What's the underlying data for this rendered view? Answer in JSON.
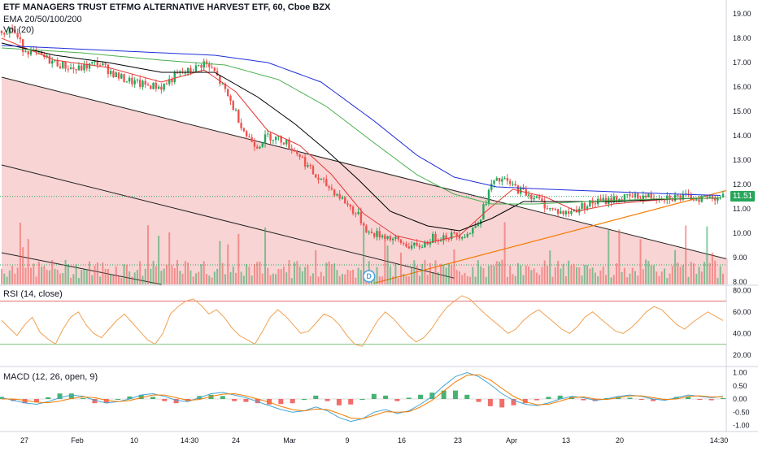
{
  "header": {
    "symbol_title": "ETF MANAGERS TRUST ETFMG ALTERNATIVE HARVEST ETF, 60, Cboe BZX",
    "ema_label": "EMA 20/50/100/200",
    "vol_label": "Vol (20)",
    "rsi_label": "RSI (14, close)",
    "macd_label": "MACD (12, 26, open, 9)"
  },
  "colors": {
    "up": "#26a65b",
    "down": "#ef5350",
    "ema20": "#e53935",
    "ema50": "#000000",
    "ema100": "#4caf50",
    "ema200": "#1e2fd8",
    "channel_fill": "#f6c6c6",
    "rsi_line": "#f0a050",
    "rsi_band_upper": "#e57373",
    "rsi_band_lower": "#81c784",
    "macd_line": "#42a5d5",
    "signal_line": "#f57c00",
    "trendline_orange": "#f57c00"
  },
  "last_price_label": "11.51",
  "event_marker_label": "D",
  "chart_data": [
    {
      "type": "candlestick",
      "title": "ETF MANAGERS TRUST ETFMG ALTERNATIVE HARVEST ETF, 60, Cboe BZX",
      "ylim": [
        7.9,
        19.3
      ],
      "y_ticks": [
        "19.00",
        "18.00",
        "17.00",
        "16.00",
        "15.00",
        "14.00",
        "13.00",
        "12.00",
        "11.00",
        "10.00",
        "9.00",
        "8.00"
      ],
      "x_tick_labels": [
        "27",
        "Feb",
        "10",
        "14:30",
        "24",
        "Mar",
        "9",
        "16",
        "23",
        "Apr",
        "13",
        "20",
        "14:30"
      ],
      "price_anchor_points": [
        [
          0,
          18.3
        ],
        [
          4,
          18.4
        ],
        [
          8,
          17.6
        ],
        [
          14,
          17.3
        ],
        [
          20,
          17.0
        ],
        [
          28,
          16.7
        ],
        [
          36,
          17.0
        ],
        [
          44,
          16.4
        ],
        [
          52,
          16.1
        ],
        [
          60,
          16.0
        ],
        [
          66,
          16.5
        ],
        [
          72,
          16.7
        ],
        [
          76,
          17.0
        ],
        [
          80,
          16.6
        ],
        [
          86,
          15.4
        ],
        [
          92,
          14.0
        ],
        [
          96,
          13.6
        ],
        [
          100,
          14.0
        ],
        [
          106,
          13.8
        ],
        [
          112,
          13.2
        ],
        [
          118,
          12.3
        ],
        [
          124,
          11.8
        ],
        [
          128,
          11.4
        ],
        [
          134,
          10.7
        ],
        [
          138,
          10.0
        ],
        [
          144,
          9.9
        ],
        [
          150,
          9.6
        ],
        [
          156,
          9.4
        ],
        [
          162,
          9.8
        ],
        [
          168,
          9.9
        ],
        [
          176,
          10.0
        ],
        [
          180,
          10.7
        ],
        [
          184,
          12.0
        ],
        [
          188,
          12.2
        ],
        [
          194,
          11.8
        ],
        [
          200,
          11.5
        ],
        [
          206,
          11.0
        ],
        [
          212,
          10.8
        ],
        [
          220,
          11.2
        ],
        [
          230,
          11.4
        ],
        [
          240,
          11.5
        ],
        [
          250,
          11.5
        ],
        [
          260,
          11.45
        ],
        [
          270,
          11.5
        ]
      ],
      "series": [
        {
          "name": "EMA 20",
          "points": [
            [
              0,
              18.0
            ],
            [
              20,
              17.1
            ],
            [
              40,
              16.8
            ],
            [
              60,
              16.2
            ],
            [
              76,
              16.7
            ],
            [
              88,
              15.8
            ],
            [
              100,
              14.2
            ],
            [
              112,
              13.6
            ],
            [
              124,
              12.4
            ],
            [
              136,
              10.8
            ],
            [
              148,
              9.9
            ],
            [
              160,
              9.6
            ],
            [
              172,
              9.9
            ],
            [
              182,
              10.9
            ],
            [
              192,
              11.8
            ],
            [
              204,
              11.5
            ],
            [
              216,
              10.9
            ],
            [
              230,
              11.2
            ],
            [
              250,
              11.4
            ],
            [
              270,
              11.45
            ]
          ]
        },
        {
          "name": "EMA 50",
          "points": [
            [
              0,
              17.8
            ],
            [
              20,
              17.3
            ],
            [
              40,
              17.0
            ],
            [
              60,
              16.6
            ],
            [
              80,
              16.6
            ],
            [
              96,
              15.6
            ],
            [
              110,
              14.5
            ],
            [
              122,
              13.4
            ],
            [
              134,
              12.2
            ],
            [
              146,
              10.9
            ],
            [
              160,
              10.3
            ],
            [
              172,
              10.1
            ],
            [
              184,
              10.6
            ],
            [
              196,
              11.3
            ],
            [
              212,
              11.3
            ],
            [
              230,
              11.3
            ],
            [
              250,
              11.4
            ],
            [
              270,
              11.45
            ]
          ]
        },
        {
          "name": "EMA 100",
          "points": [
            [
              0,
              17.6
            ],
            [
              30,
              17.4
            ],
            [
              60,
              17.1
            ],
            [
              84,
              16.9
            ],
            [
              104,
              16.3
            ],
            [
              122,
              15.2
            ],
            [
              140,
              13.7
            ],
            [
              156,
              12.4
            ],
            [
              170,
              11.6
            ],
            [
              184,
              11.2
            ],
            [
              200,
              11.2
            ],
            [
              220,
              11.3
            ],
            [
              245,
              11.4
            ],
            [
              270,
              11.45
            ]
          ]
        },
        {
          "name": "EMA 200",
          "points": [
            [
              0,
              17.7
            ],
            [
              40,
              17.5
            ],
            [
              80,
              17.3
            ],
            [
              100,
              17.0
            ],
            [
              120,
              16.2
            ],
            [
              140,
              14.6
            ],
            [
              156,
              13.2
            ],
            [
              170,
              12.3
            ],
            [
              186,
              11.9
            ],
            [
              206,
              11.8
            ],
            [
              230,
              11.7
            ],
            [
              255,
              11.6
            ],
            [
              270,
              11.55
            ]
          ]
        }
      ],
      "volume_ylim": [
        0,
        3.5
      ],
      "last_price": 11.51
    },
    {
      "type": "line",
      "title": "RSI (14, close)",
      "ylim": [
        10,
        84
      ],
      "y_ticks": [
        "80.00",
        "60.00",
        "40.00",
        "20.00"
      ],
      "bands": [
        70,
        30
      ],
      "series": [
        {
          "values": [
            52,
            45,
            38,
            48,
            55,
            41,
            35,
            30,
            44,
            55,
            60,
            48,
            40,
            36,
            44,
            52,
            58,
            50,
            42,
            34,
            30,
            40,
            58,
            65,
            70,
            72,
            66,
            58,
            62,
            55,
            45,
            38,
            34,
            30,
            42,
            55,
            62,
            56,
            48,
            40,
            42,
            50,
            58,
            55,
            48,
            38,
            30,
            28,
            40,
            52,
            60,
            54,
            46,
            38,
            32,
            36,
            44,
            55,
            64,
            70,
            75,
            72,
            65,
            58,
            52,
            46,
            40,
            44,
            52,
            58,
            62,
            56,
            50,
            44,
            40,
            46,
            55,
            60,
            54,
            48,
            42,
            40,
            45,
            52,
            60,
            65,
            62,
            55,
            48,
            44,
            50,
            55,
            60,
            56,
            52
          ]
        }
      ]
    },
    {
      "type": "bar",
      "title": "MACD (12, 26, open, 9)",
      "ylim": [
        -1.2,
        1.2
      ],
      "y_ticks": [
        "1.00",
        "0.50",
        "0.00",
        "-0.50",
        "-1.00"
      ],
      "series": [
        {
          "name": "MACD",
          "values": [
            0.05,
            -0.05,
            -0.15,
            -0.2,
            -0.1,
            0.05,
            0.15,
            0.1,
            -0.05,
            -0.15,
            -0.1,
            0.0,
            0.15,
            0.2,
            0.1,
            -0.05,
            -0.1,
            0.05,
            0.2,
            0.25,
            0.15,
            0.05,
            -0.1,
            -0.25,
            -0.4,
            -0.5,
            -0.45,
            -0.3,
            -0.45,
            -0.7,
            -0.85,
            -0.75,
            -0.5,
            -0.4,
            -0.55,
            -0.45,
            -0.2,
            0.1,
            0.5,
            0.85,
            1.0,
            0.85,
            0.55,
            0.2,
            -0.05,
            -0.2,
            -0.25,
            -0.15,
            0.0,
            0.1,
            0.05,
            -0.05,
            0.0,
            0.1,
            0.15,
            0.1,
            0.0,
            -0.05,
            0.05,
            0.15,
            0.1,
            0.05,
            0.1
          ]
        },
        {
          "name": "Signal",
          "values": [
            0.0,
            0.0,
            -0.05,
            -0.12,
            -0.14,
            -0.08,
            0.02,
            0.08,
            0.05,
            -0.05,
            -0.1,
            -0.06,
            0.05,
            0.15,
            0.15,
            0.05,
            -0.05,
            -0.02,
            0.1,
            0.18,
            0.2,
            0.12,
            0.0,
            -0.12,
            -0.28,
            -0.4,
            -0.45,
            -0.38,
            -0.4,
            -0.55,
            -0.72,
            -0.75,
            -0.62,
            -0.48,
            -0.5,
            -0.48,
            -0.3,
            -0.05,
            0.3,
            0.65,
            0.9,
            0.92,
            0.72,
            0.4,
            0.1,
            -0.1,
            -0.22,
            -0.2,
            -0.08,
            0.05,
            0.08,
            0.0,
            -0.02,
            0.05,
            0.12,
            0.12,
            0.05,
            -0.02,
            0.0,
            0.1,
            0.12,
            0.08,
            0.08
          ]
        }
      ]
    }
  ]
}
